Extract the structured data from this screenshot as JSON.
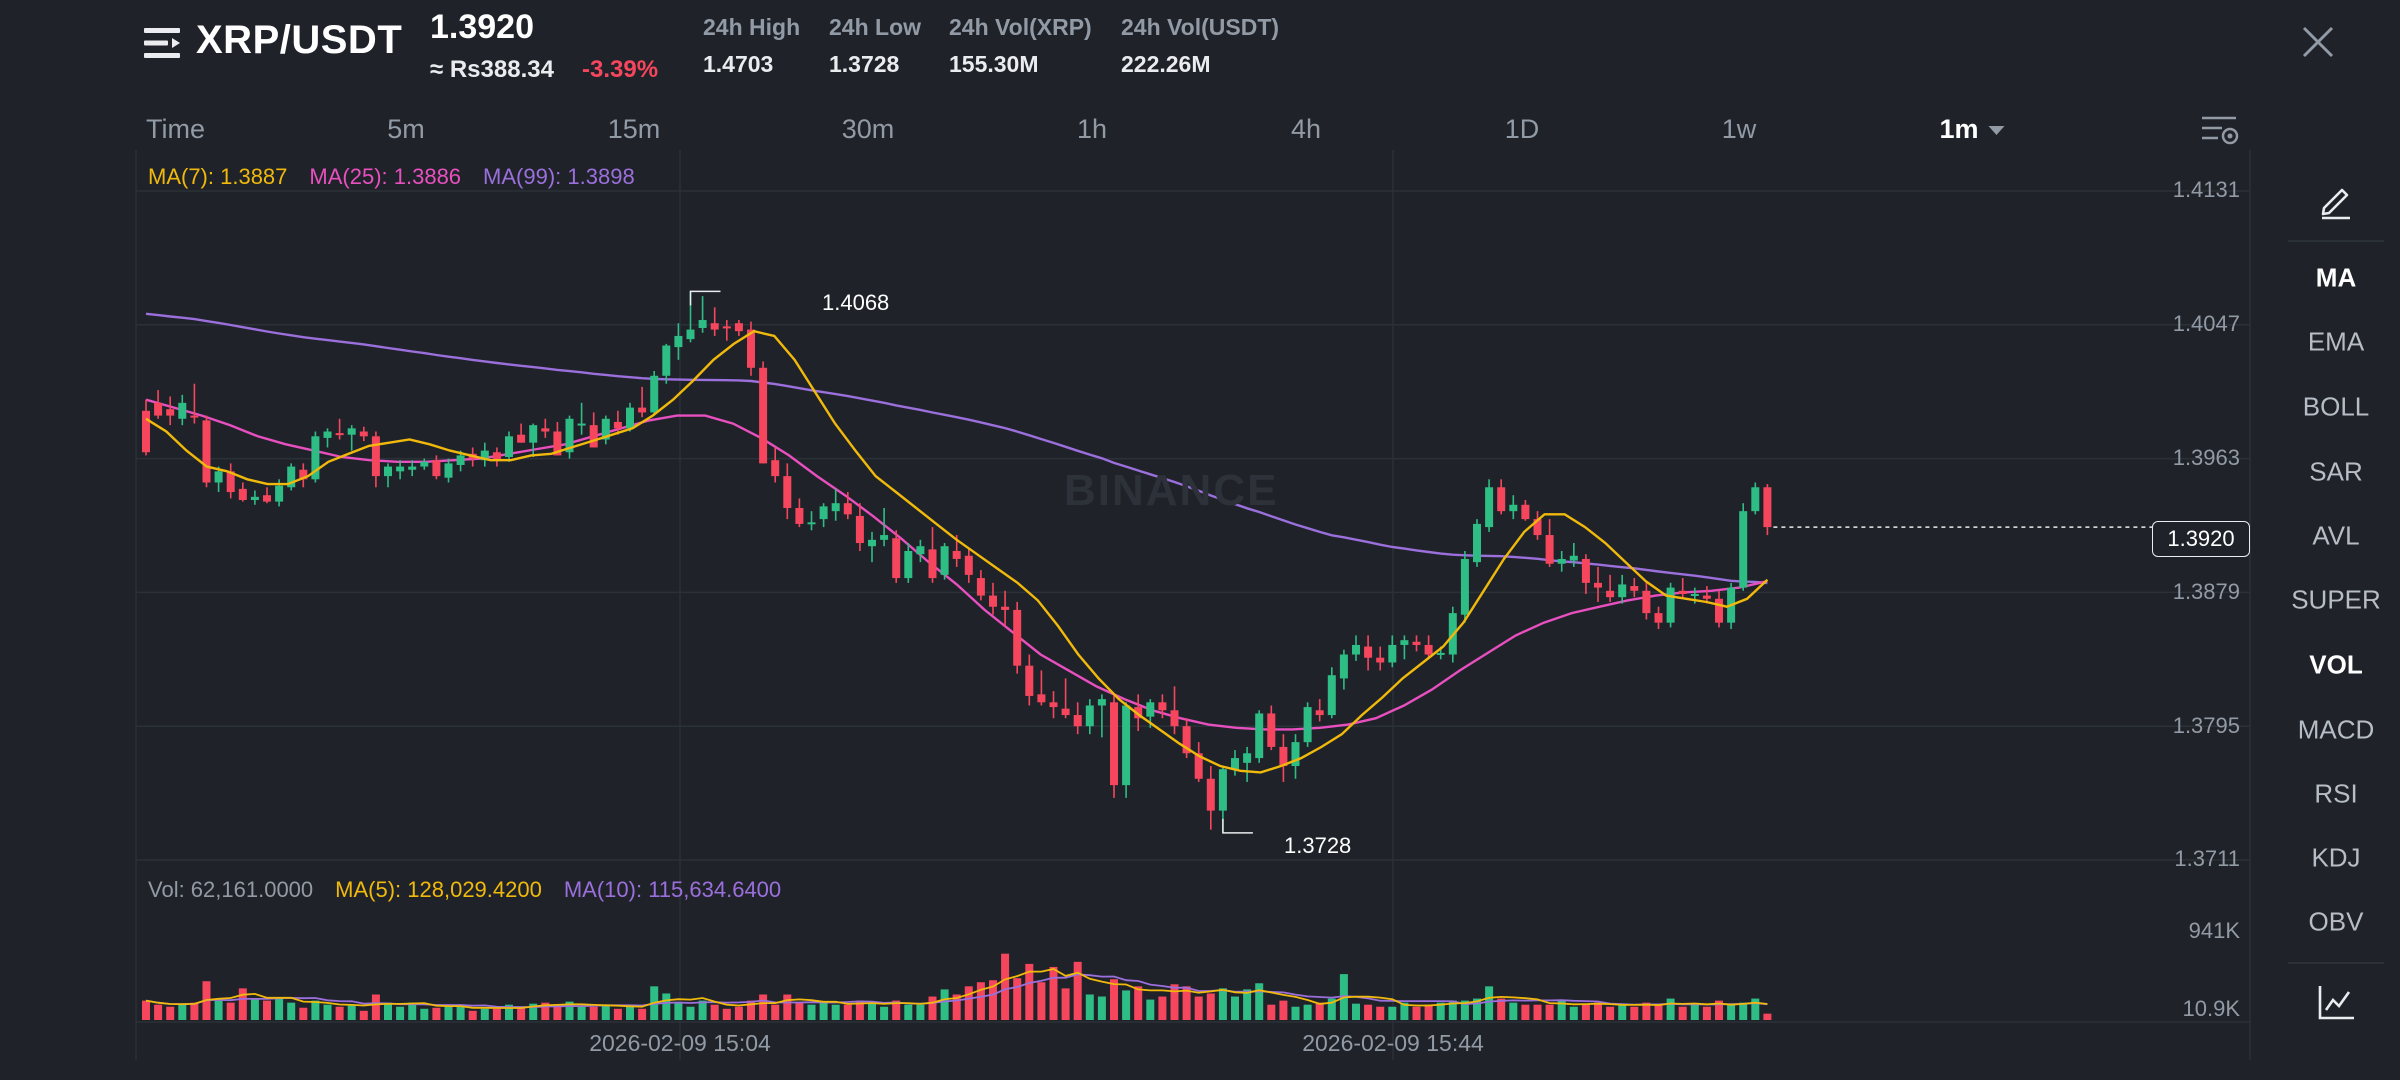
{
  "header": {
    "menu_icon": "hamburger-menu-icon",
    "pair": "XRP/USDT",
    "last_price": "1.3920",
    "fiat_price": "≈ Rs388.34",
    "change": "-3.39%",
    "stats": [
      {
        "label": "24h High",
        "value": "1.4703"
      },
      {
        "label": "24h Low",
        "value": "1.3728"
      },
      {
        "label": "24h Vol(XRP)",
        "value": "155.30M"
      },
      {
        "label": "24h Vol(USDT)",
        "value": "222.26M"
      }
    ],
    "close_icon": "close-icon"
  },
  "tabs": [
    "Time",
    "5m",
    "15m",
    "30m",
    "1h",
    "4h",
    "1D",
    "1w",
    "1m"
  ],
  "active_tab": "1m",
  "settings_icon": "chart-settings-icon",
  "legend": {
    "ma7": "MA(7): 1.3887",
    "ma25": "MA(25): 1.3886",
    "ma99": "MA(99): 1.3898"
  },
  "vol_legend": {
    "vol": "Vol: 62,161.0000",
    "ma5": "MA(5): 128,029.4200",
    "ma10": "MA(10): 115,634.6400"
  },
  "price_axis": [
    "1.4131",
    "1.4047",
    "1.3963",
    "1.3879",
    "1.3795",
    "1.3711"
  ],
  "volume_axis": [
    "941K",
    "10.9K"
  ],
  "time_axis": [
    "2026-02-09 15:04",
    "2026-02-09 15:44"
  ],
  "current_price_tag": "1.3920",
  "high_marker": "1.4068",
  "low_marker": "1.3728",
  "watermark": "BINANCE",
  "sidebar": {
    "draw_icon": "pencil-icon",
    "indicators": [
      "MA",
      "EMA",
      "BOLL",
      "SAR",
      "AVL",
      "SUPER",
      "VOL",
      "MACD",
      "RSI",
      "KDJ",
      "OBV"
    ],
    "active": [
      "MA",
      "VOL"
    ],
    "chart_type_icon": "line-chart-icon"
  },
  "colors": {
    "up": "#2ebd85",
    "down": "#f6465d",
    "ma7": "#f0b90b",
    "ma25": "#e84fbf",
    "ma99": "#9b6fdc",
    "background": "#1f2329"
  },
  "chart_data": {
    "type": "candlestick",
    "interval": "1m",
    "x_labels": [
      "2026-02-09 15:04",
      "2026-02-09 15:44"
    ],
    "price_ticks": [
      1.4131,
      1.4047,
      1.3963,
      1.3879,
      1.3795,
      1.3711
    ],
    "volume_ticks": [
      "941K",
      "10.9K"
    ],
    "annotations": {
      "high": 1.4068,
      "low": 1.3728,
      "last": 1.392
    },
    "candles": [
      [
        1.3993,
        1.4,
        1.3965,
        1.3967,
        190000
      ],
      [
        1.3998,
        1.4006,
        1.3988,
        1.399,
        150000
      ],
      [
        1.3994,
        1.4002,
        1.3984,
        1.399,
        130000
      ],
      [
        1.3988,
        1.4003,
        1.3984,
        1.3998,
        150000
      ],
      [
        1.399,
        1.401,
        1.3985,
        1.3989,
        170000
      ],
      [
        1.3987,
        1.399,
        1.3945,
        1.3948,
        380000
      ],
      [
        1.3948,
        1.3958,
        1.3942,
        1.3955,
        210000
      ],
      [
        1.3955,
        1.396,
        1.3938,
        1.3942,
        170000
      ],
      [
        1.3944,
        1.3948,
        1.3936,
        1.3937,
        310000
      ],
      [
        1.3937,
        1.3943,
        1.3934,
        1.3939,
        210000
      ],
      [
        1.394,
        1.3945,
        1.3935,
        1.3936,
        190000
      ],
      [
        1.3936,
        1.395,
        1.3933,
        1.3946,
        210000
      ],
      [
        1.3945,
        1.396,
        1.3943,
        1.3958,
        170000
      ],
      [
        1.3956,
        1.396,
        1.3945,
        1.395,
        120000
      ],
      [
        1.395,
        1.398,
        1.3948,
        1.3977,
        190000
      ],
      [
        1.3976,
        1.3982,
        1.397,
        1.398,
        150000
      ],
      [
        1.3979,
        1.3988,
        1.3975,
        1.3978,
        130000
      ],
      [
        1.3978,
        1.3984,
        1.3968,
        1.3982,
        150000
      ],
      [
        1.398,
        1.3983,
        1.3974,
        1.3977,
        90000
      ],
      [
        1.3977,
        1.398,
        1.3945,
        1.3952,
        250000
      ],
      [
        1.3952,
        1.396,
        1.3945,
        1.3958,
        170000
      ],
      [
        1.3955,
        1.3962,
        1.395,
        1.3958,
        130000
      ],
      [
        1.3956,
        1.3962,
        1.3952,
        1.3958,
        170000
      ],
      [
        1.3958,
        1.3963,
        1.3956,
        1.3961,
        110000
      ],
      [
        1.3962,
        1.3965,
        1.395,
        1.3952,
        120000
      ],
      [
        1.3951,
        1.3963,
        1.3948,
        1.396,
        150000
      ],
      [
        1.3959,
        1.3968,
        1.3955,
        1.3965,
        130000
      ],
      [
        1.3966,
        1.397,
        1.3958,
        1.3963,
        90000
      ],
      [
        1.3962,
        1.3973,
        1.3958,
        1.3968,
        110000
      ],
      [
        1.3967,
        1.397,
        1.3958,
        1.3962,
        110000
      ],
      [
        1.3964,
        1.398,
        1.3961,
        1.3977,
        150000
      ],
      [
        1.3978,
        1.3985,
        1.3973,
        1.3973,
        130000
      ],
      [
        1.3973,
        1.3985,
        1.3964,
        1.3984,
        160000
      ],
      [
        1.3982,
        1.3988,
        1.3976,
        1.398,
        170000
      ],
      [
        1.398,
        1.3986,
        1.3965,
        1.3965,
        130000
      ],
      [
        1.3967,
        1.399,
        1.3963,
        1.3988,
        180000
      ],
      [
        1.3985,
        1.3998,
        1.3978,
        1.3985,
        130000
      ],
      [
        1.3984,
        1.3992,
        1.397,
        1.397,
        130000
      ],
      [
        1.3975,
        1.399,
        1.3972,
        1.3988,
        150000
      ],
      [
        1.3986,
        1.3993,
        1.3978,
        1.3982,
        110000
      ],
      [
        1.3982,
        1.3998,
        1.398,
        1.3995,
        150000
      ],
      [
        1.3995,
        1.4008,
        1.3989,
        1.3992,
        110000
      ],
      [
        1.3992,
        1.4018,
        1.399,
        1.4015,
        330000
      ],
      [
        1.4015,
        1.4035,
        1.401,
        1.4034,
        260000
      ],
      [
        1.4033,
        1.4048,
        1.4025,
        1.404,
        170000
      ],
      [
        1.4038,
        1.4068,
        1.4036,
        1.4044,
        130000
      ],
      [
        1.4045,
        1.4065,
        1.4042,
        1.405,
        190000
      ],
      [
        1.4048,
        1.4058,
        1.404,
        1.4044,
        150000
      ],
      [
        1.4046,
        1.405,
        1.4037,
        1.4045,
        110000
      ],
      [
        1.4048,
        1.405,
        1.404,
        1.4043,
        130000
      ],
      [
        1.4044,
        1.4049,
        1.4015,
        1.402,
        190000
      ],
      [
        1.402,
        1.4024,
        1.396,
        1.396,
        250000
      ],
      [
        1.3962,
        1.397,
        1.3948,
        1.3952,
        150000
      ],
      [
        1.3952,
        1.396,
        1.3925,
        1.3932,
        250000
      ],
      [
        1.3932,
        1.3938,
        1.392,
        1.3922,
        170000
      ],
      [
        1.3922,
        1.393,
        1.3918,
        1.3923,
        150000
      ],
      [
        1.3925,
        1.3935,
        1.392,
        1.3933,
        170000
      ],
      [
        1.393,
        1.3944,
        1.3924,
        1.3935,
        150000
      ],
      [
        1.3935,
        1.3942,
        1.3925,
        1.3928,
        150000
      ],
      [
        1.3927,
        1.3935,
        1.3905,
        1.391,
        190000
      ],
      [
        1.3908,
        1.3917,
        1.3898,
        1.3912,
        170000
      ],
      [
        1.3912,
        1.3932,
        1.3908,
        1.3915,
        130000
      ],
      [
        1.3913,
        1.3918,
        1.3885,
        1.3888,
        190000
      ],
      [
        1.3888,
        1.391,
        1.3885,
        1.3905,
        150000
      ],
      [
        1.3903,
        1.3912,
        1.3898,
        1.3908,
        150000
      ],
      [
        1.3906,
        1.392,
        1.3885,
        1.3888,
        230000
      ],
      [
        1.389,
        1.391,
        1.3887,
        1.3908,
        300000
      ],
      [
        1.3905,
        1.3915,
        1.3895,
        1.39,
        250000
      ],
      [
        1.3902,
        1.3906,
        1.3885,
        1.389,
        330000
      ],
      [
        1.3888,
        1.3893,
        1.3874,
        1.3877,
        370000
      ],
      [
        1.3877,
        1.3885,
        1.3865,
        1.387,
        390000
      ],
      [
        1.387,
        1.388,
        1.3858,
        1.3868,
        650000
      ],
      [
        1.3868,
        1.3873,
        1.3828,
        1.3833,
        410000
      ],
      [
        1.3833,
        1.384,
        1.3808,
        1.3814,
        550000
      ],
      [
        1.3815,
        1.383,
        1.3808,
        1.381,
        370000
      ],
      [
        1.381,
        1.3817,
        1.38,
        1.3807,
        520000
      ],
      [
        1.3806,
        1.3825,
        1.38,
        1.3802,
        310000
      ],
      [
        1.3802,
        1.381,
        1.379,
        1.3795,
        570000
      ],
      [
        1.3795,
        1.3812,
        1.379,
        1.3808,
        250000
      ],
      [
        1.3808,
        1.3815,
        1.3788,
        1.3812,
        230000
      ],
      [
        1.381,
        1.3815,
        1.375,
        1.3758,
        400000
      ],
      [
        1.3758,
        1.381,
        1.375,
        1.3808,
        290000
      ],
      [
        1.3807,
        1.3815,
        1.3792,
        1.38,
        330000
      ],
      [
        1.3801,
        1.3812,
        1.3794,
        1.381,
        200000
      ],
      [
        1.381,
        1.3815,
        1.38,
        1.3805,
        230000
      ],
      [
        1.3805,
        1.382,
        1.379,
        1.3795,
        350000
      ],
      [
        1.3795,
        1.38,
        1.3775,
        1.3778,
        330000
      ],
      [
        1.3778,
        1.3785,
        1.376,
        1.3762,
        230000
      ],
      [
        1.3762,
        1.377,
        1.373,
        1.3742,
        260000
      ],
      [
        1.3742,
        1.377,
        1.3728,
        1.3768,
        310000
      ],
      [
        1.3768,
        1.378,
        1.3764,
        1.3775,
        230000
      ],
      [
        1.3772,
        1.3782,
        1.376,
        1.3778,
        300000
      ],
      [
        1.3775,
        1.3805,
        1.3772,
        1.3803,
        360000
      ],
      [
        1.3803,
        1.3808,
        1.378,
        1.3782,
        150000
      ],
      [
        1.3782,
        1.379,
        1.376,
        1.377,
        190000
      ],
      [
        1.377,
        1.379,
        1.3762,
        1.3785,
        130000
      ],
      [
        1.3785,
        1.381,
        1.3782,
        1.3807,
        150000
      ],
      [
        1.3805,
        1.3812,
        1.3798,
        1.3802,
        170000
      ],
      [
        1.3802,
        1.3832,
        1.38,
        1.3827,
        210000
      ],
      [
        1.3825,
        1.3843,
        1.3818,
        1.384,
        450000
      ],
      [
        1.384,
        1.3852,
        1.3836,
        1.3846,
        160000
      ],
      [
        1.3845,
        1.3852,
        1.383,
        1.3838,
        150000
      ],
      [
        1.3838,
        1.3845,
        1.383,
        1.3835,
        130000
      ],
      [
        1.3835,
        1.3852,
        1.3832,
        1.3846,
        130000
      ],
      [
        1.3846,
        1.3852,
        1.3837,
        1.3849,
        170000
      ],
      [
        1.3848,
        1.3852,
        1.3842,
        1.3846,
        130000
      ],
      [
        1.3846,
        1.3852,
        1.3838,
        1.384,
        150000
      ],
      [
        1.384,
        1.3845,
        1.3837,
        1.3841,
        170000
      ],
      [
        1.384,
        1.387,
        1.3835,
        1.3866,
        190000
      ],
      [
        1.3865,
        1.3905,
        1.386,
        1.39,
        190000
      ],
      [
        1.3898,
        1.3925,
        1.3895,
        1.3922,
        210000
      ],
      [
        1.392,
        1.395,
        1.3917,
        1.3945,
        330000
      ],
      [
        1.3945,
        1.395,
        1.3928,
        1.393,
        210000
      ],
      [
        1.393,
        1.394,
        1.3925,
        1.3934,
        170000
      ],
      [
        1.3934,
        1.3937,
        1.3924,
        1.3925,
        150000
      ],
      [
        1.3925,
        1.393,
        1.3912,
        1.3915,
        150000
      ],
      [
        1.3915,
        1.3925,
        1.3895,
        1.3897,
        150000
      ],
      [
        1.3897,
        1.3905,
        1.3892,
        1.39,
        190000
      ],
      [
        1.3899,
        1.391,
        1.3895,
        1.3902,
        130000
      ],
      [
        1.39,
        1.3903,
        1.3878,
        1.3885,
        160000
      ],
      [
        1.3885,
        1.3895,
        1.3873,
        1.3882,
        170000
      ],
      [
        1.388,
        1.389,
        1.3873,
        1.3876,
        130000
      ],
      [
        1.3876,
        1.389,
        1.3872,
        1.3884,
        150000
      ],
      [
        1.3883,
        1.3888,
        1.3876,
        1.388,
        130000
      ],
      [
        1.388,
        1.3886,
        1.3862,
        1.3866,
        170000
      ],
      [
        1.3866,
        1.387,
        1.3856,
        1.386,
        150000
      ],
      [
        1.386,
        1.3885,
        1.3857,
        1.3882,
        210000
      ],
      [
        1.388,
        1.3888,
        1.3875,
        1.3878,
        130000
      ],
      [
        1.3878,
        1.3882,
        1.3872,
        1.3878,
        150000
      ],
      [
        1.3877,
        1.3883,
        1.3872,
        1.3875,
        130000
      ],
      [
        1.3875,
        1.388,
        1.3857,
        1.386,
        190000
      ],
      [
        1.386,
        1.3885,
        1.3856,
        1.3882,
        150000
      ],
      [
        1.3882,
        1.3935,
        1.388,
        1.393,
        170000
      ],
      [
        1.393,
        1.3948,
        1.3928,
        1.3945,
        210000
      ],
      [
        1.3945,
        1.3947,
        1.3915,
        1.392,
        62161
      ]
    ],
    "ma7": [
      1.3988,
      1.398,
      1.3968,
      1.3958,
      1.3955,
      1.395,
      1.3947,
      1.3947,
      1.3952,
      1.3961,
      1.3966,
      1.3971,
      1.3973,
      1.3975,
      1.3972,
      1.3968,
      1.3965,
      1.3962,
      1.3962,
      1.3965,
      1.3966,
      1.397,
      1.3974,
      1.3978,
      1.3982,
      1.399,
      1.4,
      1.4012,
      1.4025,
      1.4035,
      1.4043,
      1.404,
      1.4025,
      1.4005,
      1.3985,
      1.3968,
      1.3952,
      1.3942,
      1.3932,
      1.3922,
      1.3912,
      1.3903,
      1.3894,
      1.3885,
      1.3874,
      1.3858,
      1.384,
      1.3825,
      1.3812,
      1.3802,
      1.3793,
      1.3784,
      1.3776,
      1.377,
      1.3767,
      1.3766,
      1.377,
      1.3775,
      1.3782,
      1.379,
      1.3802,
      1.3813,
      1.3825,
      1.3835,
      1.3845,
      1.386,
      1.388,
      1.39,
      1.3917,
      1.3928,
      1.3928,
      1.392,
      1.391,
      1.3898,
      1.3886,
      1.3877,
      1.3875,
      1.3873,
      1.387,
      1.3875,
      1.3887
    ],
    "ma25": [
      1.4,
      1.3995,
      1.399,
      1.3984,
      1.3977,
      1.3972,
      1.3968,
      1.3964,
      1.3962,
      1.3961,
      1.3961,
      1.3962,
      1.3963,
      1.3966,
      1.3969,
      1.3972,
      1.3977,
      1.3982,
      1.3987,
      1.399,
      1.399,
      1.3985,
      1.3976,
      1.3965,
      1.3952,
      1.394,
      1.3927,
      1.3913,
      1.3898,
      1.3884,
      1.3868,
      1.3854,
      1.384,
      1.383,
      1.382,
      1.3812,
      1.3805,
      1.38,
      1.3796,
      1.3794,
      1.3793,
      1.3793,
      1.3794,
      1.3796,
      1.38,
      1.3808,
      1.3818,
      1.383,
      1.3841,
      1.3852,
      1.386,
      1.3866,
      1.387,
      1.3874,
      1.3877,
      1.3879,
      1.388,
      1.3882,
      1.3886
    ]
  }
}
